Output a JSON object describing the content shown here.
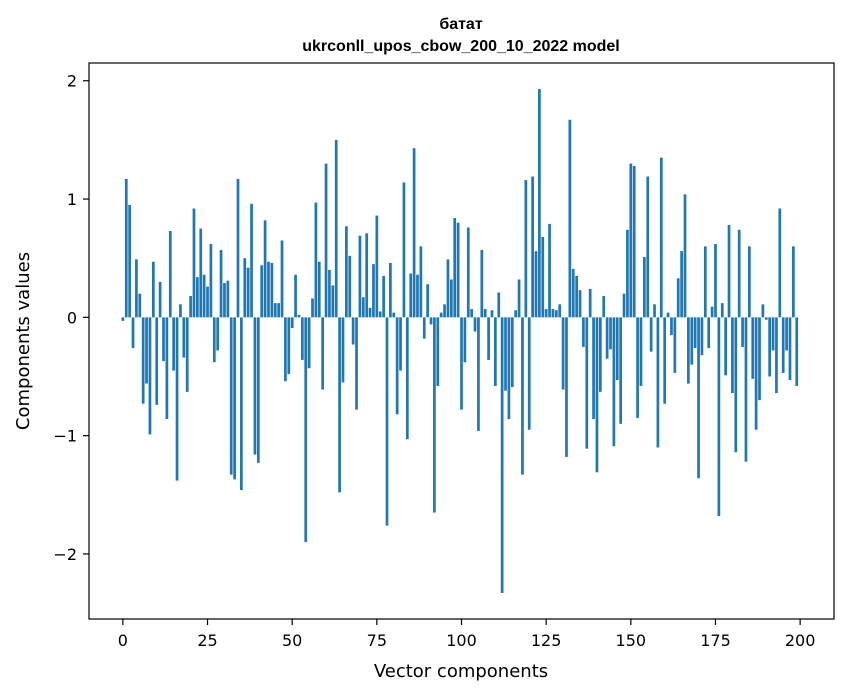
{
  "chart_data": {
    "type": "bar",
    "title": "батат",
    "subtitle": "ukrconll_upos_cbow_200_10_2022 model",
    "xlabel": "Vector components",
    "ylabel": "Components values",
    "xlim": [
      -10,
      210
    ],
    "ylim": [
      -2.55,
      2.15
    ],
    "xticks": [
      0,
      25,
      50,
      75,
      100,
      125,
      150,
      175,
      200
    ],
    "xtick_labels": [
      "0",
      "25",
      "50",
      "75",
      "100",
      "125",
      "150",
      "175",
      "200"
    ],
    "yticks": [
      2,
      1,
      0,
      -1,
      -2
    ],
    "ytick_labels": [
      "2",
      "1",
      "0",
      "−1",
      "−2"
    ],
    "grid": false,
    "bar_color": "#1f77b4",
    "x": [
      0,
      1,
      2,
      3,
      4,
      5,
      6,
      7,
      8,
      9,
      10,
      11,
      12,
      13,
      14,
      15,
      16,
      17,
      18,
      19,
      20,
      21,
      22,
      23,
      24,
      25,
      26,
      27,
      28,
      29,
      30,
      31,
      32,
      33,
      34,
      35,
      36,
      37,
      38,
      39,
      40,
      41,
      42,
      43,
      44,
      45,
      46,
      47,
      48,
      49,
      50,
      51,
      52,
      53,
      54,
      55,
      56,
      57,
      58,
      59,
      60,
      61,
      62,
      63,
      64,
      65,
      66,
      67,
      68,
      69,
      70,
      71,
      72,
      73,
      74,
      75,
      76,
      77,
      78,
      79,
      80,
      81,
      82,
      83,
      84,
      85,
      86,
      87,
      88,
      89,
      90,
      91,
      92,
      93,
      94,
      95,
      96,
      97,
      98,
      99,
      100,
      101,
      102,
      103,
      104,
      105,
      106,
      107,
      108,
      109,
      110,
      111,
      112,
      113,
      114,
      115,
      116,
      117,
      118,
      119,
      120,
      121,
      122,
      123,
      124,
      125,
      126,
      127,
      128,
      129,
      130,
      131,
      132,
      133,
      134,
      135,
      136,
      137,
      138,
      139,
      140,
      141,
      142,
      143,
      144,
      145,
      146,
      147,
      148,
      149,
      150,
      151,
      152,
      153,
      154,
      155,
      156,
      157,
      158,
      159,
      160,
      161,
      162,
      163,
      164,
      165,
      166,
      167,
      168,
      169,
      170,
      171,
      172,
      173,
      174,
      175,
      176,
      177,
      178,
      179,
      180,
      181,
      182,
      183,
      184,
      185,
      186,
      187,
      188,
      189,
      190,
      191,
      192,
      193,
      194,
      195,
      196,
      197,
      198,
      199
    ],
    "values": [
      -0.03,
      1.17,
      0.95,
      -0.26,
      0.49,
      0.2,
      -0.73,
      -0.56,
      -0.99,
      0.47,
      -0.74,
      0.3,
      -0.37,
      -0.86,
      0.73,
      -0.45,
      -1.38,
      0.11,
      -0.34,
      -0.63,
      0.18,
      0.92,
      0.34,
      0.75,
      0.36,
      0.26,
      0.62,
      -0.38,
      -0.28,
      0.57,
      0.29,
      0.31,
      -1.33,
      -1.37,
      1.17,
      -1.46,
      0.5,
      0.42,
      0.96,
      -1.16,
      -1.23,
      0.44,
      0.82,
      0.47,
      0.46,
      0.12,
      0.12,
      0.65,
      -0.54,
      -0.48,
      -0.09,
      0.36,
      0.02,
      -0.36,
      -1.9,
      -0.43,
      0.16,
      0.97,
      0.47,
      -0.61,
      1.3,
      0.4,
      0.27,
      1.5,
      -1.48,
      -0.55,
      0.77,
      0.52,
      -0.23,
      -0.78,
      0.69,
      0.17,
      0.71,
      0.08,
      0.45,
      0.86,
      0.05,
      0.35,
      -1.76,
      0.46,
      0.04,
      -0.82,
      -0.45,
      1.14,
      -1.03,
      0.37,
      1.43,
      0.36,
      0.6,
      -0.18,
      0.28,
      -0.06,
      -1.65,
      -0.58,
      0.04,
      0.11,
      0.49,
      0.32,
      0.84,
      0.8,
      -0.78,
      -0.38,
      0.76,
      0.07,
      -0.12,
      -0.96,
      0.57,
      0.07,
      -0.36,
      0.06,
      -0.58,
      0.21,
      -2.33,
      -0.62,
      -0.86,
      -0.59,
      0.06,
      0.32,
      -1.33,
      1.16,
      -0.95,
      1.19,
      0.56,
      1.93,
      0.68,
      0.07,
      0.79,
      0.07,
      0.06,
      0.11,
      -0.61,
      -1.18,
      1.67,
      0.41,
      0.35,
      0.23,
      -0.25,
      -1.11,
      0.24,
      -0.86,
      -1.31,
      -0.63,
      0.18,
      -0.35,
      -0.27,
      -1.09,
      -0.53,
      -0.9,
      0.2,
      0.74,
      1.3,
      1.28,
      -0.85,
      -0.58,
      0.51,
      1.19,
      -0.29,
      0.11,
      -1.1,
      1.35,
      -0.73,
      0.04,
      -0.15,
      -0.47,
      0.33,
      0.56,
      1.04,
      -0.56,
      -0.4,
      -0.26,
      -1.36,
      -0.32,
      0.6,
      -0.26,
      0.09,
      0.62,
      -1.68,
      0.12,
      -0.49,
      0.78,
      -0.64,
      -1.14,
      0.74,
      -0.25,
      -1.22,
      0.6,
      -0.52,
      -0.95,
      -0.7,
      0.11,
      -0.02,
      -0.5,
      -0.28,
      -0.64,
      0.92,
      -0.47,
      -0.28,
      -0.53,
      0.6,
      -0.58
    ]
  }
}
